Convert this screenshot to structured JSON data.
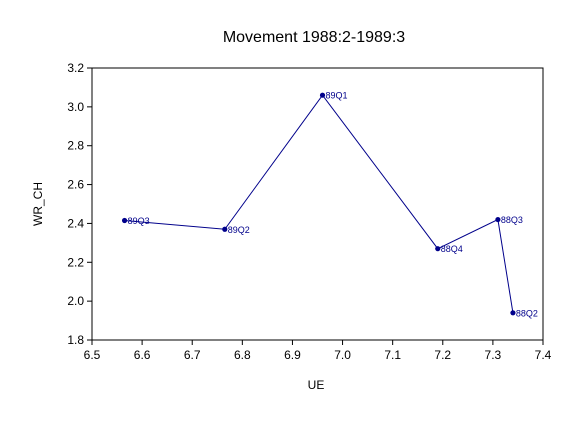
{
  "chart_data": {
    "type": "line",
    "title": "Movement 1988:2-1989:3",
    "xlabel": "UE",
    "ylabel": "WR_CH",
    "xlim": [
      6.5,
      7.4
    ],
    "ylim": [
      1.8,
      3.2
    ],
    "xticks": [
      "6.5",
      "6.6",
      "6.7",
      "6.8",
      "6.9",
      "7.0",
      "7.1",
      "7.2",
      "7.3",
      "7.4"
    ],
    "yticks": [
      "1.8",
      "2.0",
      "2.2",
      "2.4",
      "2.6",
      "2.8",
      "3.0",
      "3.2"
    ],
    "grid": false,
    "color": "#00008B",
    "points": [
      {
        "label": "88Q2",
        "x": 7.34,
        "y": 1.94
      },
      {
        "label": "88Q3",
        "x": 7.31,
        "y": 2.42
      },
      {
        "label": "88Q4",
        "x": 7.19,
        "y": 2.27
      },
      {
        "label": "89Q1",
        "x": 6.96,
        "y": 3.06
      },
      {
        "label": "89Q2",
        "x": 6.765,
        "y": 2.37
      },
      {
        "label": "89Q3",
        "x": 6.565,
        "y": 2.415
      }
    ]
  }
}
